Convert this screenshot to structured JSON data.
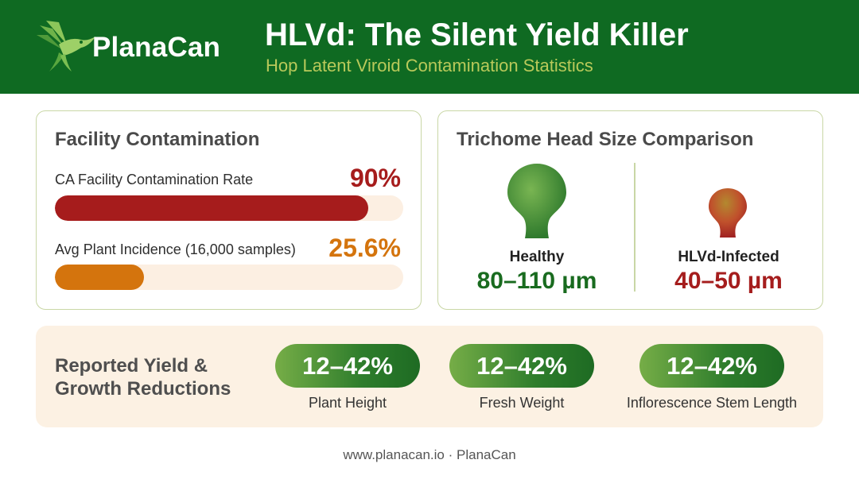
{
  "header": {
    "brand": "PlanaCan",
    "title": "HLVd: The Silent Yield Killer",
    "subtitle": "Hop Latent Viroid Contamination Statistics",
    "logo_icon": "hummingbird-icon"
  },
  "facility": {
    "title": "Facility Contamination",
    "stats": [
      {
        "label": "CA Facility Contamination Rate",
        "value": "90%",
        "percent": 90,
        "color": "#a61c1c"
      },
      {
        "label": "Avg Plant Incidence (16,000 samples)",
        "value": "25.6%",
        "percent": 25.6,
        "color": "#d4740d"
      }
    ]
  },
  "trichome": {
    "title": "Trichome Head Size Comparison",
    "healthy": {
      "label": "Healthy",
      "value": "80–110 µm",
      "color": "#196b1f",
      "icon": "healthy-trichome-icon"
    },
    "infected": {
      "label": "HLVd-Infected",
      "value": "40–50 µm",
      "color": "#a51d1d",
      "icon": "infected-trichome-icon"
    }
  },
  "reductions": {
    "title_line1": "Reported Yield &",
    "title_line2": "Growth Reductions",
    "items": [
      {
        "value": "12–42%",
        "label": "Plant Height"
      },
      {
        "value": "12–42%",
        "label": "Fresh Weight"
      },
      {
        "value": "12–42%",
        "label": "Inflorescence Stem Length"
      }
    ]
  },
  "footer": {
    "text": "www.planacan.io · PlanaCan"
  }
}
